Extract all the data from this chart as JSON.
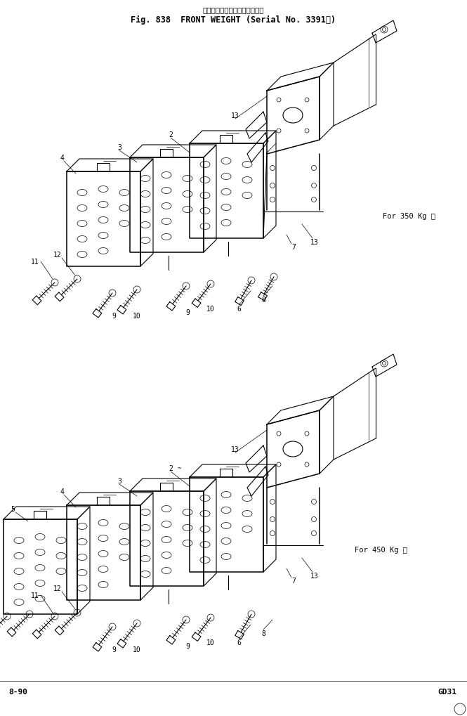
{
  "title_line1": "フロント　ウェイト（適用号機",
  "title_line2": "Fig. 838  FRONT WEIGHT (Serial No. 3391～)",
  "bottom_left": "8-90",
  "bottom_right": "GD31",
  "label_350": "For 350 Kg 号",
  "label_450": "For 450 Kg 号",
  "bg_color": "#ffffff",
  "line_color": "#000000",
  "fig_width": 6.65,
  "fig_height": 10.2,
  "dpi": 100
}
